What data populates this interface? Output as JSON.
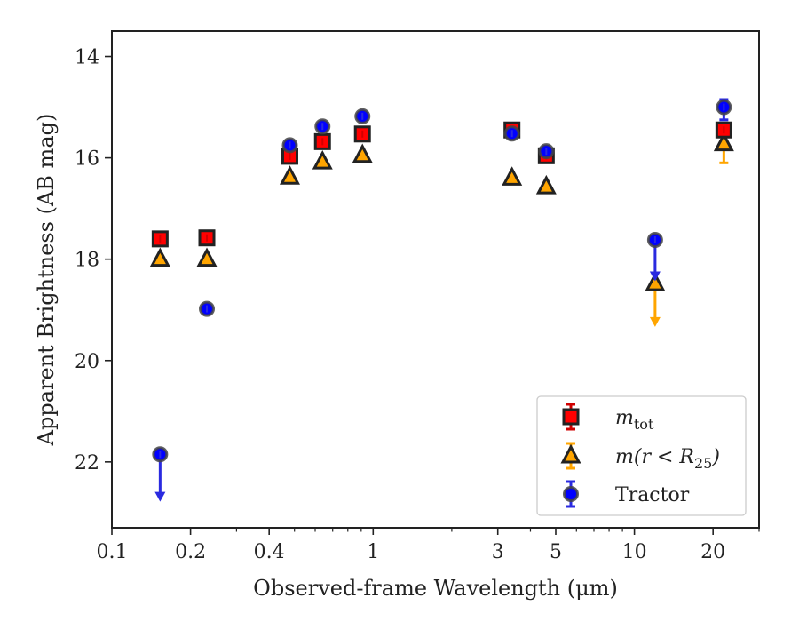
{
  "chart_data": {
    "type": "scatter",
    "title": "",
    "xlabel": "Observed-frame Wavelength (μm)",
    "ylabel": "Apparent Brightness (AB mag)",
    "xscale": "log",
    "xlim": [
      0.1,
      30
    ],
    "ylim": [
      23.3,
      13.5
    ],
    "y_inverted": true,
    "xticks": [
      {
        "value": 0.1,
        "label": "0.1"
      },
      {
        "value": 0.2,
        "label": "0.2"
      },
      {
        "value": 0.4,
        "label": "0.4"
      },
      {
        "value": 1,
        "label": "1"
      },
      {
        "value": 3,
        "label": "3"
      },
      {
        "value": 5,
        "label": "5"
      },
      {
        "value": 10,
        "label": "10"
      },
      {
        "value": 20,
        "label": "20"
      }
    ],
    "yticks": [
      {
        "value": 14,
        "label": "14"
      },
      {
        "value": 16,
        "label": "16"
      },
      {
        "value": 18,
        "label": "18"
      },
      {
        "value": 20,
        "label": "20"
      },
      {
        "value": 22,
        "label": "22"
      }
    ],
    "grid": false,
    "legend_position": "lower-right",
    "series": [
      {
        "name": "m_tot",
        "legend_label": {
          "main": "m",
          "sub": "tot"
        },
        "marker": "square",
        "face_color": "#ff0000",
        "edge_color": "#222222",
        "err_color": "#d00000",
        "points": [
          {
            "x": 0.153,
            "y": 17.6
          },
          {
            "x": 0.231,
            "y": 17.58
          },
          {
            "x": 0.48,
            "y": 15.97
          },
          {
            "x": 0.64,
            "y": 15.68
          },
          {
            "x": 0.91,
            "y": 15.53
          },
          {
            "x": 3.4,
            "y": 15.45
          },
          {
            "x": 4.6,
            "y": 15.96
          },
          {
            "x": 22,
            "y": 15.45
          }
        ]
      },
      {
        "name": "m(r<R25)",
        "legend_label": {
          "main": "m(r < R",
          "sub": "25",
          "end": ")"
        },
        "marker": "triangle",
        "face_color": "#ffa500",
        "edge_color": "#222222",
        "err_color": "#ffa500",
        "points": [
          {
            "x": 0.153,
            "y": 18.0
          },
          {
            "x": 0.231,
            "y": 18.0
          },
          {
            "x": 0.48,
            "y": 16.38
          },
          {
            "x": 0.64,
            "y": 16.08
          },
          {
            "x": 0.91,
            "y": 15.95
          },
          {
            "x": 3.4,
            "y": 16.4
          },
          {
            "x": 4.6,
            "y": 16.57
          },
          {
            "x": 12,
            "y": 18.48,
            "upper_limit_to": 19.3
          },
          {
            "x": 22,
            "y": 15.72,
            "err_low": 15.4,
            "err_high": 16.1
          }
        ]
      },
      {
        "name": "Tractor",
        "legend_label": {
          "main": "Tractor"
        },
        "marker": "circle",
        "face_color": "#0000ff",
        "edge_color": "#444444",
        "err_color": "#2a2ae0",
        "points": [
          {
            "x": 0.153,
            "y": 21.85,
            "upper_limit_to": 22.75
          },
          {
            "x": 0.231,
            "y": 18.98
          },
          {
            "x": 0.48,
            "y": 15.75
          },
          {
            "x": 0.64,
            "y": 15.38
          },
          {
            "x": 0.91,
            "y": 15.18
          },
          {
            "x": 3.4,
            "y": 15.52
          },
          {
            "x": 4.6,
            "y": 15.87
          },
          {
            "x": 12,
            "y": 17.62,
            "upper_limit_to": 18.4
          },
          {
            "x": 22,
            "y": 15.0,
            "err_low": 14.85,
            "err_high": 15.25
          }
        ]
      }
    ]
  }
}
